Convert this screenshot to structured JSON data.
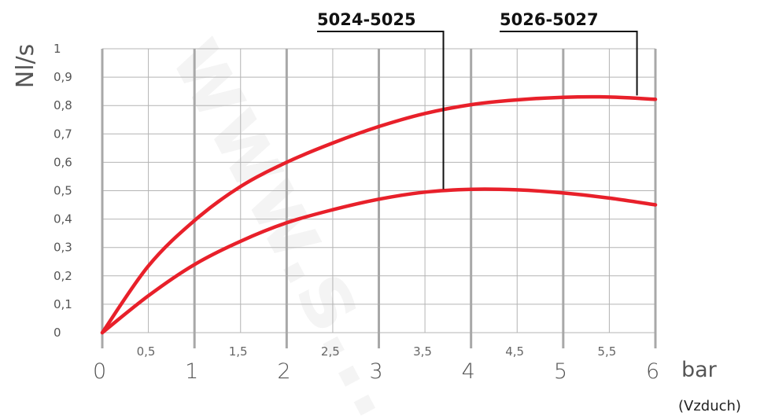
{
  "chart_data": {
    "type": "line",
    "title": "",
    "xlabel": "bar",
    "ylabel": "Nl/s",
    "note": "(Vzduch)",
    "watermark": "www.s...",
    "xlim": [
      0,
      6
    ],
    "ylim": [
      0,
      1
    ],
    "x_major_ticks": [
      {
        "value": 0,
        "label": "0"
      },
      {
        "value": 1,
        "label": "1"
      },
      {
        "value": 2,
        "label": "2"
      },
      {
        "value": 3,
        "label": "3"
      },
      {
        "value": 4,
        "label": "4"
      },
      {
        "value": 5,
        "label": "5"
      },
      {
        "value": 6,
        "label": "6"
      }
    ],
    "x_minor_ticks": [
      {
        "value": 0.5,
        "label": "0,5"
      },
      {
        "value": 1.5,
        "label": "1,5"
      },
      {
        "value": 2.5,
        "label": "2,5"
      },
      {
        "value": 3.5,
        "label": "3,5"
      },
      {
        "value": 4.5,
        "label": "4,5"
      },
      {
        "value": 5.5,
        "label": "5,5"
      }
    ],
    "y_ticks": [
      {
        "value": 0,
        "label": "0"
      },
      {
        "value": 0.1,
        "label": "0,1"
      },
      {
        "value": 0.2,
        "label": "0,2"
      },
      {
        "value": 0.3,
        "label": "0,3"
      },
      {
        "value": 0.4,
        "label": "0,4"
      },
      {
        "value": 0.5,
        "label": "0,5"
      },
      {
        "value": 0.6,
        "label": "0,6"
      },
      {
        "value": 0.7,
        "label": "0,7"
      },
      {
        "value": 0.8,
        "label": "0,8"
      },
      {
        "value": 0.9,
        "label": "0,9"
      },
      {
        "value": 1,
        "label": "1"
      }
    ],
    "grid": true,
    "series": [
      {
        "name": "5026-5027",
        "color": "#e8202a",
        "x": [
          0,
          0.5,
          1,
          1.5,
          2,
          2.5,
          3,
          3.5,
          4,
          4.5,
          5,
          5.5,
          6
        ],
        "y": [
          0,
          0.235,
          0.395,
          0.515,
          0.6,
          0.668,
          0.726,
          0.772,
          0.803,
          0.82,
          0.829,
          0.83,
          0.822
        ],
        "label_anchor": {
          "x": 5.8,
          "y": 0.83
        }
      },
      {
        "name": "5024-5025",
        "color": "#e8202a",
        "x": [
          0,
          0.5,
          1,
          1.5,
          2,
          2.5,
          3,
          3.5,
          4,
          4.5,
          5,
          5.5,
          6
        ],
        "y": [
          0,
          0.13,
          0.24,
          0.322,
          0.387,
          0.433,
          0.47,
          0.495,
          0.505,
          0.503,
          0.492,
          0.474,
          0.45
        ],
        "label_anchor": {
          "x": 3.7,
          "y": 0.5
        }
      }
    ]
  }
}
